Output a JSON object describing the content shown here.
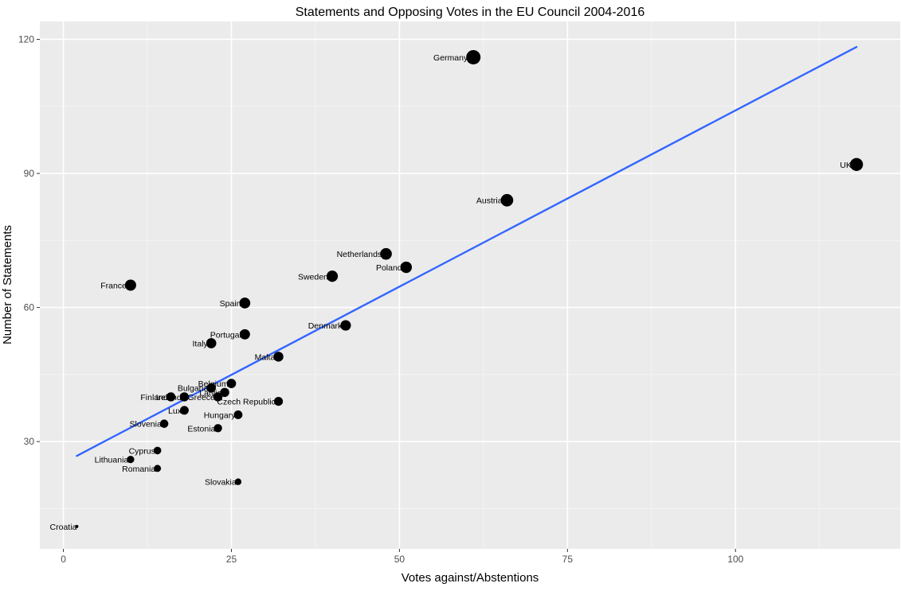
{
  "chart_data": {
    "type": "scatter",
    "title": "Statements and Opposing Votes in the EU Council 2004-2016",
    "xlabel": "Votes against/Abstentions",
    "ylabel": "Number of Statements",
    "xlim": [
      -3.5,
      124.5
    ],
    "ylim": [
      6,
      124
    ],
    "x_ticks": [
      0,
      25,
      50,
      75,
      100
    ],
    "y_ticks": [
      30,
      60,
      90,
      120
    ],
    "grid": true,
    "legend": "none",
    "trend_line": {
      "method": "linear",
      "x": [
        2,
        118
      ],
      "y": [
        26.8,
        118.3
      ],
      "color": "#3366ff"
    },
    "points": [
      {
        "label": "Germany",
        "x": 61,
        "y": 116
      },
      {
        "label": "UK",
        "x": 118,
        "y": 92
      },
      {
        "label": "Austria",
        "x": 66,
        "y": 84
      },
      {
        "label": "Netherlands",
        "x": 48,
        "y": 72
      },
      {
        "label": "Poland",
        "x": 51,
        "y": 69
      },
      {
        "label": "Sweden",
        "x": 40,
        "y": 67
      },
      {
        "label": "France",
        "x": 10,
        "y": 65
      },
      {
        "label": "Spain",
        "x": 27,
        "y": 61
      },
      {
        "label": "Denmark",
        "x": 42,
        "y": 56
      },
      {
        "label": "Portugal",
        "x": 27,
        "y": 54
      },
      {
        "label": "Italy",
        "x": 22,
        "y": 52
      },
      {
        "label": "Malta",
        "x": 32,
        "y": 49
      },
      {
        "label": "Belgium",
        "x": 25,
        "y": 43
      },
      {
        "label": "Bulgaria",
        "x": 22,
        "y": 42
      },
      {
        "label": "Latvia",
        "x": 24,
        "y": 41
      },
      {
        "label": "Finland",
        "x": 16,
        "y": 40
      },
      {
        "label": "Ireland",
        "x": 18,
        "y": 40
      },
      {
        "label": "Greece",
        "x": 23,
        "y": 40
      },
      {
        "label": "Czech Republic",
        "x": 32,
        "y": 39
      },
      {
        "label": "Lux",
        "x": 18,
        "y": 37
      },
      {
        "label": "Hungary",
        "x": 26,
        "y": 36
      },
      {
        "label": "Slovenia",
        "x": 15,
        "y": 34
      },
      {
        "label": "Estonia",
        "x": 23,
        "y": 33
      },
      {
        "label": "Cyprus",
        "x": 14,
        "y": 28
      },
      {
        "label": "Lithuania",
        "x": 10,
        "y": 26
      },
      {
        "label": "Romania",
        "x": 14,
        "y": 24
      },
      {
        "label": "Slovakia",
        "x": 26,
        "y": 21
      },
      {
        "label": "Croatia",
        "x": 2,
        "y": 11
      }
    ]
  }
}
